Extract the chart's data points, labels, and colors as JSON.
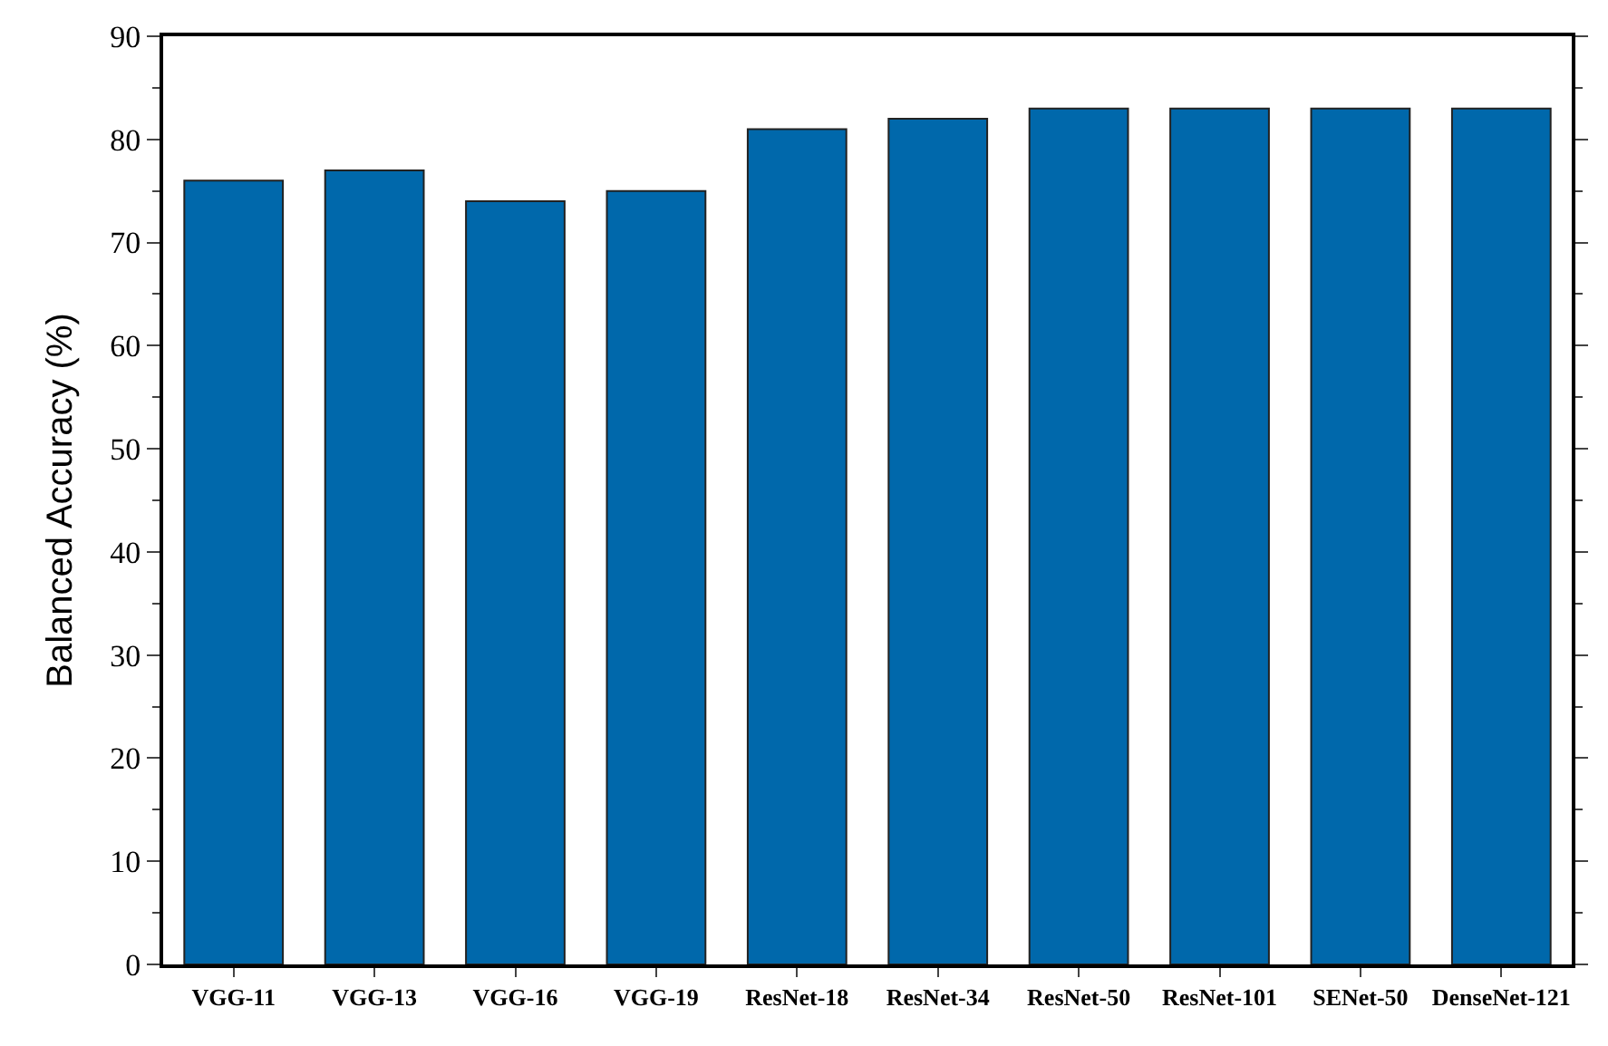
{
  "chart_data": {
    "type": "bar",
    "ylabel": "Balanced Accuracy (%)",
    "categories": [
      "VGG-11",
      "VGG-13",
      "VGG-16",
      "VGG-19",
      "ResNet-18",
      "ResNet-34",
      "ResNet-50",
      "ResNet-101",
      "SENet-50",
      "DenseNet-121"
    ],
    "values": [
      76,
      77,
      74,
      75,
      81,
      82,
      83,
      83,
      83,
      83
    ],
    "color": "#0068ab",
    "ylim": [
      0,
      90
    ],
    "yticks": [
      0,
      10,
      20,
      30,
      40,
      50,
      60,
      70,
      80,
      90
    ]
  }
}
